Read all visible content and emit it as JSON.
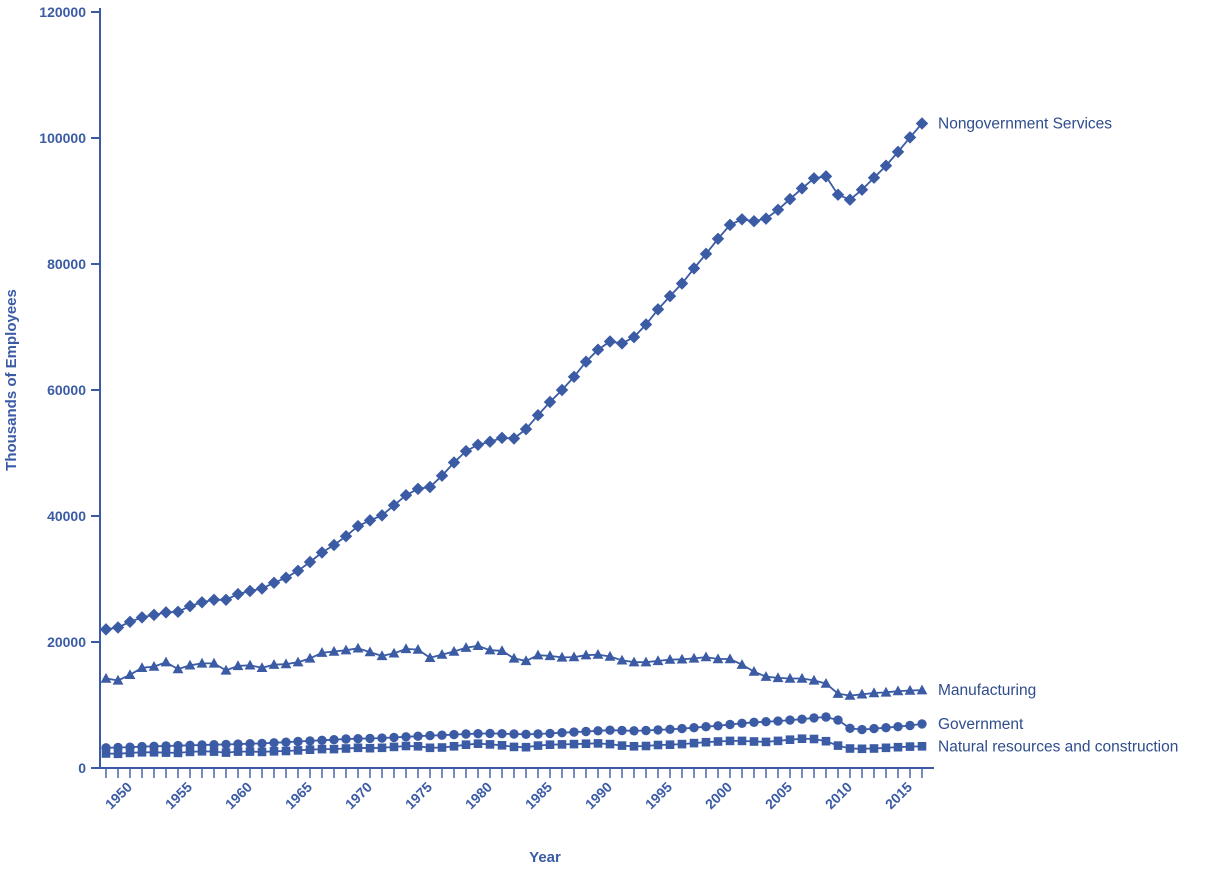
{
  "page": {
    "background": "#ffffff"
  },
  "chart_data": {
    "type": "line",
    "title": "",
    "xlabel": "Year",
    "ylabel": "Thousands of Employees",
    "color": "#3b5ba5",
    "text_color": "#2f4d8c",
    "grid": false,
    "legend_position": "right-end-of-line-labels",
    "ylim": [
      0,
      120000
    ],
    "y_ticks": [
      0,
      20000,
      40000,
      60000,
      80000,
      100000,
      120000
    ],
    "x_range": [
      1947.5,
      2016.5
    ],
    "x_ticks": [
      1950,
      1955,
      1960,
      1965,
      1970,
      1975,
      1980,
      1985,
      1990,
      1995,
      2000,
      2005,
      2010,
      2015
    ],
    "years": [
      1948,
      1949,
      1950,
      1951,
      1952,
      1953,
      1954,
      1955,
      1956,
      1957,
      1958,
      1959,
      1960,
      1961,
      1962,
      1963,
      1964,
      1965,
      1966,
      1967,
      1968,
      1969,
      1970,
      1971,
      1972,
      1973,
      1974,
      1975,
      1976,
      1977,
      1978,
      1979,
      1980,
      1981,
      1982,
      1983,
      1984,
      1985,
      1986,
      1987,
      1988,
      1989,
      1990,
      1991,
      1992,
      1993,
      1994,
      1995,
      1996,
      1997,
      1998,
      1999,
      2000,
      2001,
      2002,
      2003,
      2004,
      2005,
      2006,
      2007,
      2008,
      2009,
      2010,
      2011,
      2012,
      2013,
      2014,
      2015,
      2016
    ],
    "series": [
      {
        "id": "nongovernment-services",
        "name": "Nongovernment Services",
        "marker": "diamond",
        "values": [
          22000,
          22300,
          23200,
          23900,
          24300,
          24700,
          24800,
          25700,
          26300,
          26700,
          26700,
          27600,
          28100,
          28500,
          29400,
          30200,
          31300,
          32700,
          34200,
          35400,
          36800,
          38400,
          39300,
          40100,
          41700,
          43300,
          44300,
          44600,
          46400,
          48500,
          50300,
          51300,
          51800,
          52400,
          52300,
          53800,
          56000,
          58100,
          60000,
          62100,
          64500,
          66400,
          67700,
          67400,
          68400,
          70400,
          72800,
          74900,
          76900,
          79300,
          81600,
          84000,
          86200,
          87100,
          86800,
          87200,
          88600,
          90300,
          92000,
          93600,
          93900,
          91000,
          90200,
          91800,
          93700,
          95600,
          97800,
          100100,
          102300
        ]
      },
      {
        "id": "manufacturing",
        "name": "Manufacturing",
        "marker": "triangle",
        "values": [
          14200,
          13900,
          14800,
          15900,
          16100,
          16800,
          15700,
          16300,
          16600,
          16600,
          15500,
          16200,
          16300,
          15900,
          16400,
          16500,
          16800,
          17400,
          18300,
          18500,
          18700,
          19000,
          18400,
          17800,
          18200,
          18900,
          18800,
          17500,
          18000,
          18500,
          19100,
          19400,
          18700,
          18600,
          17400,
          17000,
          17900,
          17800,
          17550,
          17600,
          17900,
          18000,
          17700,
          17100,
          16800,
          16800,
          17000,
          17200,
          17250,
          17400,
          17600,
          17300,
          17300,
          16400,
          15300,
          14500,
          14300,
          14200,
          14200,
          13900,
          13400,
          11800,
          11500,
          11700,
          11900,
          12000,
          12200,
          12300,
          12350
        ]
      },
      {
        "id": "government",
        "name": "Government",
        "marker": "circle",
        "values": [
          3200,
          3250,
          3300,
          3400,
          3450,
          3500,
          3550,
          3600,
          3650,
          3700,
          3750,
          3800,
          3850,
          3900,
          4000,
          4100,
          4200,
          4300,
          4400,
          4500,
          4600,
          4650,
          4700,
          4750,
          4850,
          4950,
          5050,
          5150,
          5200,
          5300,
          5400,
          5450,
          5500,
          5450,
          5400,
          5350,
          5400,
          5500,
          5600,
          5700,
          5800,
          5900,
          6000,
          5950,
          5900,
          5950,
          6050,
          6150,
          6250,
          6400,
          6550,
          6700,
          6900,
          7100,
          7250,
          7350,
          7450,
          7600,
          7750,
          7950,
          8100,
          7600,
          6300,
          6100,
          6250,
          6400,
          6550,
          6750,
          7000
        ]
      },
      {
        "id": "natural-resources-construction",
        "name": "Natural resources and construction",
        "marker": "square",
        "values": [
          2300,
          2250,
          2400,
          2500,
          2500,
          2450,
          2400,
          2550,
          2650,
          2600,
          2450,
          2600,
          2600,
          2550,
          2650,
          2700,
          2800,
          2900,
          3000,
          3000,
          3100,
          3200,
          3150,
          3200,
          3350,
          3500,
          3450,
          3200,
          3250,
          3450,
          3700,
          3850,
          3750,
          3600,
          3350,
          3300,
          3550,
          3700,
          3750,
          3800,
          3850,
          3900,
          3800,
          3550,
          3450,
          3500,
          3650,
          3700,
          3800,
          3950,
          4100,
          4200,
          4300,
          4300,
          4200,
          4150,
          4300,
          4500,
          4650,
          4600,
          4250,
          3550,
          3100,
          3050,
          3100,
          3200,
          3300,
          3400,
          3450
        ]
      }
    ]
  }
}
